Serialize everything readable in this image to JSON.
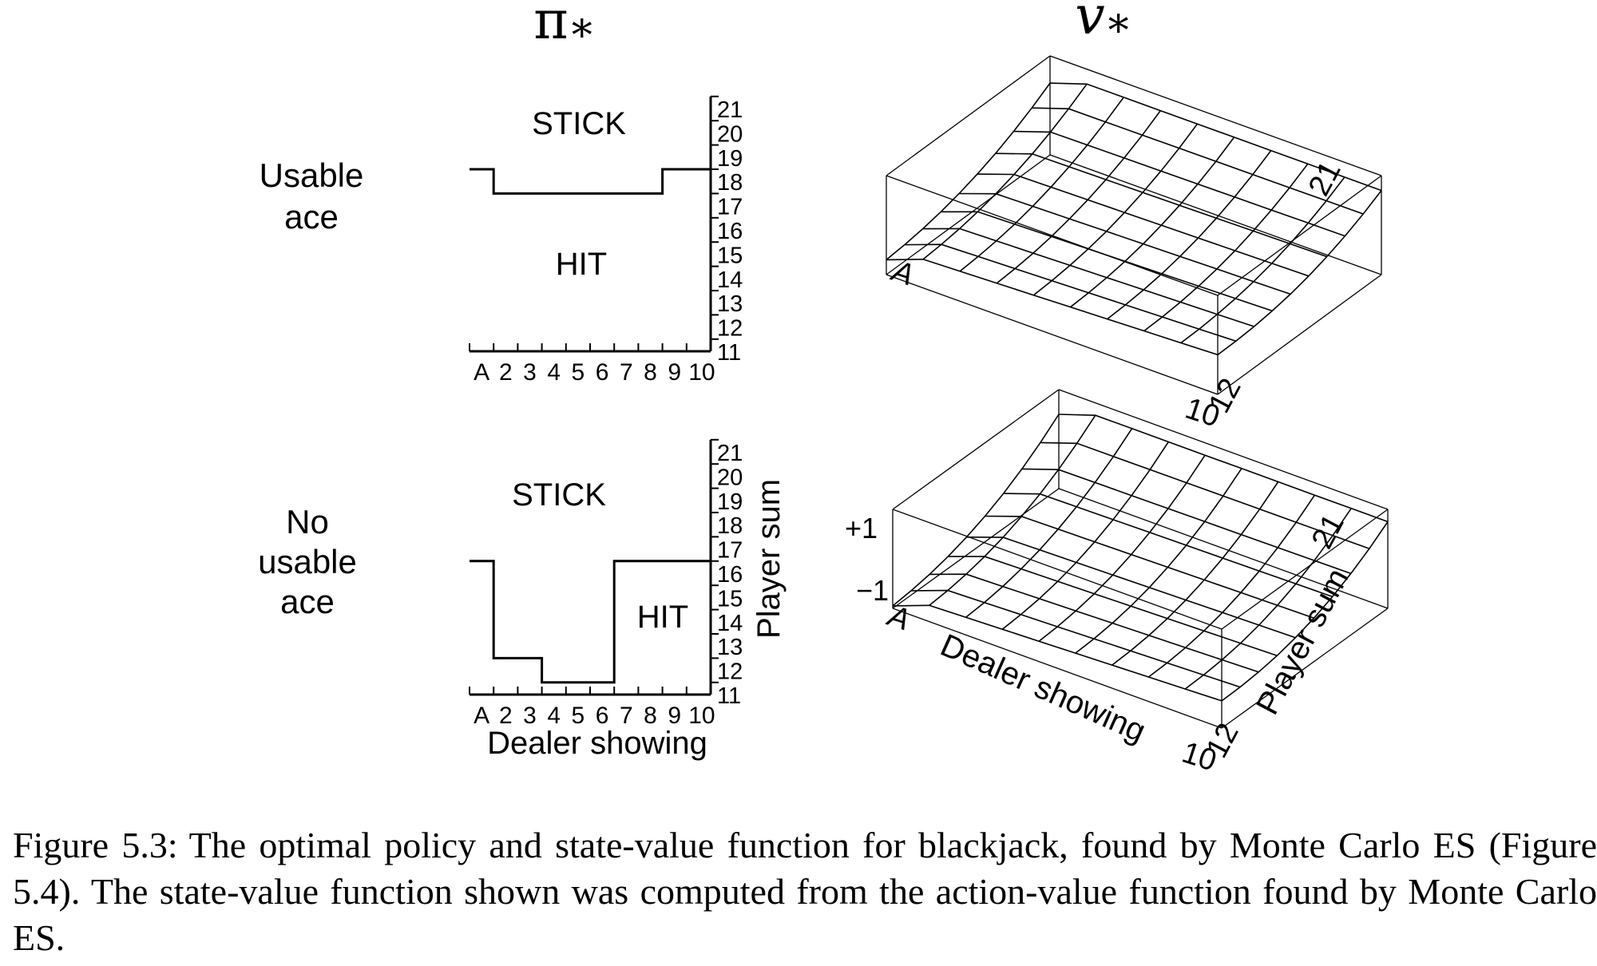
{
  "figure": {
    "policy_heading": "π",
    "policy_heading_sub": "*",
    "value_heading": "v",
    "value_heading_sub": "*",
    "row_labels": {
      "usable": [
        "Usable",
        "ace"
      ],
      "no_usable": [
        "No",
        "usable",
        "ace"
      ]
    },
    "policy_labels": {
      "stick": "STICK",
      "hit": "HIT"
    },
    "axes": {
      "dealer_ticks": [
        "A",
        "2",
        "3",
        "4",
        "5",
        "6",
        "7",
        "8",
        "9",
        "10"
      ],
      "player_ticks": [
        "21",
        "20",
        "19",
        "18",
        "17",
        "16",
        "15",
        "14",
        "13",
        "12",
        "11"
      ],
      "xlabel": "Dealer showing",
      "ylabel": "Player sum"
    },
    "surface_labels": {
      "corner_a": "A",
      "corner_10": "10",
      "corner_12": "12",
      "corner_21": "21",
      "plus_one": "+1",
      "minus_one": "−1",
      "dealer_axis": "Dealer showing",
      "player_axis": "Player sum"
    }
  },
  "chart_data": [
    {
      "type": "line",
      "panel": "policy-usable-ace",
      "xlabel": "",
      "ylabel": "",
      "categories": [
        "A",
        "2",
        "3",
        "4",
        "5",
        "6",
        "7",
        "8",
        "9",
        "10"
      ],
      "stick_threshold": [
        19,
        18,
        18,
        18,
        18,
        18,
        18,
        18,
        19,
        19
      ],
      "ylim": [
        11,
        21
      ],
      "regions": [
        "STICK",
        "HIT"
      ]
    },
    {
      "type": "line",
      "panel": "policy-no-usable-ace",
      "xlabel": "Dealer showing",
      "ylabel": "Player sum",
      "categories": [
        "A",
        "2",
        "3",
        "4",
        "5",
        "6",
        "7",
        "8",
        "9",
        "10"
      ],
      "stick_threshold": [
        17,
        13,
        13,
        12,
        12,
        12,
        17,
        17,
        17,
        17
      ],
      "ylim": [
        11,
        21
      ],
      "regions": [
        "STICK",
        "HIT"
      ]
    },
    {
      "type": "area",
      "panel": "value-usable-ace",
      "xlabel": "",
      "ylabel": "",
      "x": [
        "A",
        "2",
        "3",
        "4",
        "5",
        "6",
        "7",
        "8",
        "9",
        "10"
      ],
      "y": [
        12,
        13,
        14,
        15,
        16,
        17,
        18,
        19,
        20,
        21
      ],
      "zlim": [
        -1,
        1
      ]
    },
    {
      "type": "area",
      "panel": "value-no-usable-ace",
      "xlabel": "Dealer showing",
      "ylabel": "Player sum",
      "x": [
        "A",
        "2",
        "3",
        "4",
        "5",
        "6",
        "7",
        "8",
        "9",
        "10"
      ],
      "y": [
        12,
        13,
        14,
        15,
        16,
        17,
        18,
        19,
        20,
        21
      ],
      "zlim": [
        -1,
        1
      ]
    }
  ],
  "caption": {
    "label": "Figure 5.3:",
    "text": "The optimal policy and state-value function for blackjack, found by Monte Carlo ES (Figure 5.4). The state-value function shown was computed from the action-value function found by Monte Carlo ES."
  }
}
